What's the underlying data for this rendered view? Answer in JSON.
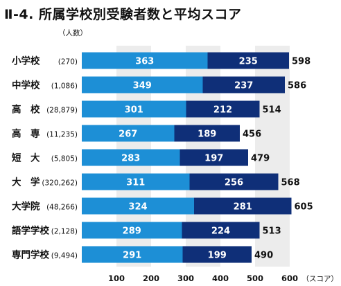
{
  "title": "Ⅱ-4. 所属学校別受験者数と平均スコア",
  "count_unit": "（人数）",
  "x_unit": "（スコア）",
  "colors": {
    "series1": "#1d8fd6",
    "series2": "#0f2f78",
    "band": "#ececec"
  },
  "chart_data": {
    "type": "bar",
    "orientation": "horizontal",
    "stacked": true,
    "title": "Ⅱ-4. 所属学校別受験者数と平均スコア",
    "xlabel": "（スコア）",
    "ylabel": "",
    "xlim": [
      0,
      700
    ],
    "xticks": [
      100,
      200,
      300,
      400,
      500,
      600
    ],
    "grid": "alternating vertical bands",
    "categories": [
      "小学校",
      "中学校",
      "高　校",
      "高　専",
      "短　大",
      "大　学",
      "大学院",
      "語学学校",
      "専門学校"
    ],
    "counts": [
      "(270)",
      "(1,086)",
      "(28,879)",
      "(11,235)",
      "(5,805)",
      "(320,262)",
      "(48,266)",
      "(2,128)",
      "(9,494)"
    ],
    "series": [
      {
        "values": [
          363,
          349,
          301,
          267,
          283,
          311,
          324,
          289,
          291
        ]
      },
      {
        "values": [
          235,
          237,
          212,
          189,
          197,
          256,
          281,
          224,
          199
        ]
      }
    ],
    "totals": [
      598,
      586,
      514,
      456,
      479,
      568,
      605,
      513,
      490
    ]
  }
}
